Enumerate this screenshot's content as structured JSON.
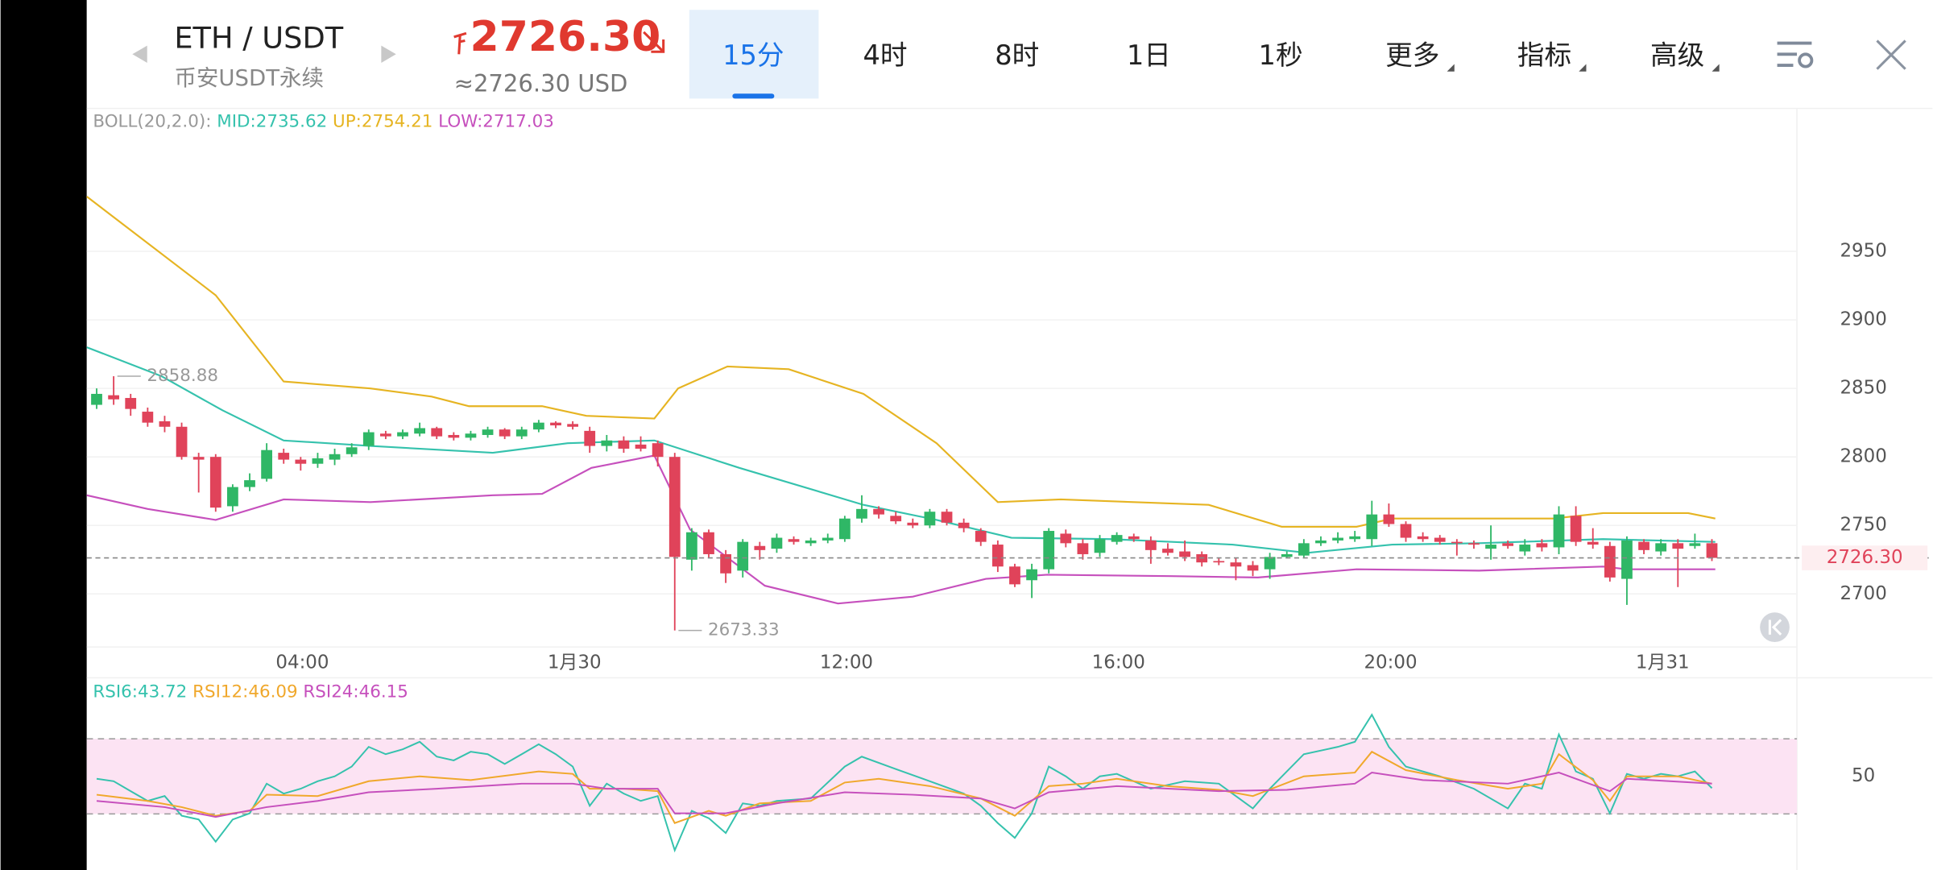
{
  "header": {
    "pair": "ETH / USDT",
    "market": "币安USDT永续",
    "price": "2726.30",
    "price_usd": "≈2726.30 USD",
    "tabs": [
      "15分",
      "4时",
      "8时",
      "1日",
      "1秒",
      "更多",
      "指标",
      "高级"
    ],
    "active_tab": 0
  },
  "chart_data": [
    {
      "type": "candlestick",
      "up_color": "#2fb766",
      "down_color": "#e0435a",
      "legend_title": "BOLL(20,2.0):",
      "open": [
        2838,
        2845,
        2843,
        2833,
        2826,
        2822,
        2800,
        2800,
        2764,
        2778,
        2784,
        2803,
        2798,
        2795,
        2798,
        2802,
        2808,
        2817,
        2815,
        2817,
        2821,
        2816,
        2814,
        2816,
        2820,
        2815,
        2820,
        2825,
        2824,
        2819,
        2808,
        2812,
        2809,
        2810,
        2800,
        2725,
        2745,
        2729,
        2717,
        2735,
        2733,
        2740,
        2737,
        2739,
        2740,
        2755,
        2762,
        2757,
        2752,
        2750,
        2760,
        2752,
        2746,
        2736,
        2720,
        2710,
        2718,
        2744,
        2737,
        2730,
        2738,
        2742,
        2739,
        2733,
        2731,
        2729,
        2724,
        2723,
        2721,
        2718,
        2727,
        2728,
        2737,
        2739,
        2740,
        2740,
        2758,
        2751,
        2742,
        2741,
        2738,
        2737,
        2733,
        2737,
        2731,
        2737,
        2734,
        2757,
        2738,
        2735,
        2711,
        2738,
        2731,
        2737,
        2735,
        2737
      ],
      "high": [
        2850,
        2858.88,
        2846,
        2836,
        2830,
        2825,
        2803,
        2802,
        2780,
        2788,
        2810,
        2806,
        2800,
        2803,
        2806,
        2810,
        2820,
        2819,
        2820,
        2825,
        2822,
        2818,
        2819,
        2822,
        2821,
        2822,
        2827,
        2826,
        2826,
        2822,
        2816,
        2815,
        2815,
        2812,
        2803,
        2748,
        2747,
        2732,
        2740,
        2738,
        2744,
        2742,
        2741,
        2744,
        2757,
        2772,
        2764,
        2760,
        2755,
        2762,
        2762,
        2755,
        2748,
        2739,
        2722,
        2722,
        2748,
        2747,
        2740,
        2743,
        2745,
        2744,
        2742,
        2737,
        2739,
        2731,
        2726,
        2726,
        2724,
        2730,
        2731,
        2740,
        2742,
        2745,
        2746,
        2768,
        2766,
        2753,
        2745,
        2743,
        2740,
        2739,
        2750,
        2739,
        2740,
        2740,
        2764,
        2764,
        2748,
        2738,
        2742,
        2740,
        2740,
        2740,
        2744,
        2740
      ],
      "low": [
        2835,
        2838,
        2830,
        2822,
        2818,
        2798,
        2774,
        2760,
        2760,
        2775,
        2782,
        2795,
        2790,
        2792,
        2794,
        2800,
        2805,
        2813,
        2813,
        2815,
        2813,
        2812,
        2812,
        2814,
        2813,
        2813,
        2818,
        2821,
        2820,
        2803,
        2804,
        2803,
        2804,
        2793,
        2673.33,
        2717,
        2726,
        2708,
        2712,
        2725,
        2730,
        2736,
        2735,
        2737,
        2738,
        2752,
        2755,
        2751,
        2748,
        2748,
        2750,
        2745,
        2735,
        2716,
        2705,
        2697,
        2715,
        2734,
        2725,
        2727,
        2736,
        2738,
        2722,
        2728,
        2724,
        2720,
        2721,
        2710,
        2713,
        2711,
        2726,
        2726,
        2735,
        2737,
        2738,
        2735,
        2749,
        2738,
        2738,
        2736,
        2728,
        2733,
        2725,
        2733,
        2728,
        2731,
        2729,
        2735,
        2733,
        2709,
        2692,
        2729,
        2728,
        2705,
        2733,
        2724
      ],
      "close": [
        2846,
        2842,
        2835,
        2825,
        2822,
        2800,
        2798,
        2763,
        2778,
        2783,
        2805,
        2798,
        2795,
        2799,
        2802,
        2807,
        2818,
        2815,
        2818,
        2821,
        2815,
        2814,
        2817,
        2820,
        2815,
        2820,
        2825,
        2823,
        2822,
        2808,
        2812,
        2806,
        2806,
        2800,
        2727,
        2745,
        2729,
        2715,
        2738,
        2732,
        2741,
        2738,
        2739,
        2741,
        2755,
        2762,
        2758,
        2753,
        2750,
        2760,
        2752,
        2748,
        2738,
        2720,
        2707,
        2718,
        2746,
        2737,
        2729,
        2740,
        2743,
        2740,
        2732,
        2730,
        2727,
        2723,
        2723,
        2720,
        2717,
        2727,
        2729,
        2737,
        2739,
        2741,
        2742,
        2758,
        2751,
        2741,
        2740,
        2738,
        2737,
        2736,
        2736,
        2735,
        2736,
        2734,
        2758,
        2738,
        2736,
        2712,
        2739,
        2732,
        2737,
        2733,
        2737,
        2726.3
      ],
      "series": [
        {
          "label": "MID:2735.62",
          "color": "#35c2ad",
          "x": [
            -0.58,
            3.8,
            7.4,
            11,
            16.1,
            23.3,
            27.7,
            32.8,
            37.8,
            45.1,
            49.4,
            53.8,
            59.6,
            66.8,
            71.2,
            76.2,
            81.3,
            88.6,
            95.2
          ],
          "values": [
            2880,
            2859,
            2834,
            2812,
            2808,
            2803,
            2810,
            2812,
            2792,
            2765,
            2754,
            2741,
            2740,
            2736,
            2730,
            2736,
            2737,
            2740,
            2738
          ]
        },
        {
          "label": "UP:2754.21",
          "color": "#e6b422",
          "x": [
            -0.58,
            7,
            11,
            16.1,
            19.7,
            21.9,
            26.2,
            28.8,
            32.8,
            34.2,
            37.1,
            40.7,
            45.1,
            49.4,
            53,
            56.7,
            61,
            65.4,
            69.7,
            74.1,
            76.2,
            81.3,
            85.7,
            88.6,
            93.6,
            95.2
          ],
          "values": [
            2990,
            2918,
            2855,
            2850,
            2844,
            2837,
            2837,
            2830,
            2828,
            2850,
            2866,
            2864,
            2846,
            2810,
            2767,
            2769,
            2767,
            2765,
            2749,
            2749,
            2755,
            2755,
            2755,
            2759,
            2759,
            2755
          ]
        },
        {
          "label": "LOW:2717.03",
          "color": "#c650bd",
          "x": [
            -0.58,
            3,
            7,
            11,
            16.1,
            23.3,
            26.2,
            29.1,
            32.8,
            34.9,
            39.3,
            43.6,
            48,
            52.3,
            55.9,
            63.2,
            68.3,
            74.1,
            81.3,
            88.6,
            90,
            95.2
          ],
          "values": [
            2772,
            2762,
            2754,
            2769,
            2767,
            2772,
            2773,
            2792,
            2801,
            2747,
            2706,
            2693,
            2698,
            2711,
            2714,
            2713,
            2712,
            2718,
            2717,
            2720,
            2718,
            2718
          ]
        }
      ],
      "current": {
        "value": 2726.3,
        "label": "2726.30"
      },
      "xlim": [
        -0.58,
        100
      ],
      "xticks": [
        {
          "value": 12.1,
          "label": "04:00"
        },
        {
          "value": 28.1,
          "label": "1月30"
        },
        {
          "value": 44.1,
          "label": "12:00"
        },
        {
          "value": 60.1,
          "label": "16:00"
        },
        {
          "value": 76.1,
          "label": "20:00"
        },
        {
          "value": 92.1,
          "label": "1月31"
        }
      ],
      "ylim": [
        2661.3,
        3054.3
      ],
      "yticks": [
        2700,
        2750,
        2800,
        2850,
        2900,
        2950
      ],
      "grid": true
    },
    {
      "type": "line",
      "band": [
        30,
        70
      ],
      "band_color": "#fce3f3",
      "series": [
        {
          "label": "RSI6:43.72",
          "color": "#35c2ad",
          "x": [
            0,
            1,
            2,
            3,
            4,
            5,
            6,
            7,
            8,
            9,
            10,
            11,
            12,
            13,
            14,
            15,
            16,
            17,
            18,
            19,
            20,
            21,
            22,
            23,
            24,
            25,
            26,
            27,
            28,
            29,
            30,
            31,
            32,
            33,
            34,
            35,
            36,
            37,
            38,
            39,
            40,
            42,
            44,
            45,
            47,
            49,
            51,
            52,
            53,
            54,
            55,
            56,
            57,
            58,
            59,
            60,
            62,
            64,
            66,
            68,
            69,
            71,
            73,
            74,
            75,
            76,
            77,
            79,
            81,
            83,
            84,
            85,
            86,
            87,
            88,
            89,
            90,
            91,
            92,
            93,
            94,
            95
          ],
          "values": [
            48.7,
            47.4,
            42.1,
            36.9,
            39.5,
            29,
            27,
            15.2,
            27,
            30.3,
            46.1,
            40.8,
            43.4,
            47.4,
            50,
            55.2,
            65.7,
            61.8,
            64.4,
            68.4,
            60.5,
            58.5,
            63.1,
            61.8,
            56.6,
            61.8,
            67.1,
            61.8,
            55.2,
            34.3,
            46.1,
            40.8,
            36.9,
            39.5,
            10.6,
            31.6,
            27.7,
            19.8,
            35.6,
            34.3,
            36.9,
            38.2,
            55.2,
            60.5,
            53.9,
            47.4,
            40.8,
            34.3,
            25.1,
            17.2,
            30.3,
            55.2,
            50,
            43.4,
            50,
            51.3,
            43.4,
            47.4,
            46.1,
            32.9,
            43.4,
            61.8,
            65.7,
            68.4,
            82.8,
            65.7,
            55.2,
            50,
            43.4,
            32.9,
            46.1,
            43.4,
            72.3,
            52.6,
            48.7,
            30.3,
            51.3,
            48.7,
            51.3,
            50,
            52.6,
            43.72
          ]
        },
        {
          "label": "RSI12:46.09",
          "color": "#f0a82c",
          "x": [
            0,
            3,
            5,
            7,
            9,
            10,
            13,
            16,
            19,
            22,
            26,
            28,
            29,
            31,
            33,
            34,
            36,
            37,
            39,
            42,
            44,
            46,
            49,
            52,
            54,
            56,
            58,
            60,
            63,
            66,
            68,
            71,
            74,
            75,
            77,
            80,
            83,
            85,
            86,
            88,
            89,
            90,
            93,
            95
          ],
          "values": [
            40.2,
            36.9,
            33.6,
            29,
            31.6,
            40.2,
            39.5,
            47.4,
            50,
            48,
            52.6,
            51.3,
            43.4,
            43.4,
            42.1,
            25.1,
            31.6,
            29,
            35.6,
            36.9,
            46.7,
            48.7,
            44.8,
            38.2,
            29,
            44.8,
            46.1,
            48.7,
            44.8,
            42.8,
            39.5,
            50,
            52,
            63.1,
            53.3,
            48,
            43.4,
            46.1,
            61.8,
            48,
            36.9,
            50,
            50,
            46.09
          ]
        },
        {
          "label": "RSI24:46.15",
          "color": "#c650bd",
          "x": [
            0,
            4,
            7,
            10,
            13,
            16,
            20,
            25,
            28,
            30,
            33,
            34,
            37,
            40,
            44,
            48,
            52,
            54,
            56,
            60,
            66,
            70,
            74,
            75,
            78,
            83,
            86,
            89,
            90,
            95
          ],
          "values": [
            36.9,
            33.6,
            28.4,
            33.6,
            36.9,
            41.5,
            43.4,
            46.1,
            46.1,
            43.4,
            43.4,
            30.3,
            30.3,
            35.6,
            41.5,
            40.2,
            38.2,
            32.9,
            41.5,
            44.8,
            42.1,
            42.8,
            46.1,
            52,
            48,
            46.1,
            52,
            42.1,
            48.7,
            46.15
          ]
        }
      ],
      "xlim": [
        -0.58,
        100
      ],
      "ylim": [
        0.1,
        101.2
      ],
      "yticks": [
        50
      ]
    }
  ]
}
